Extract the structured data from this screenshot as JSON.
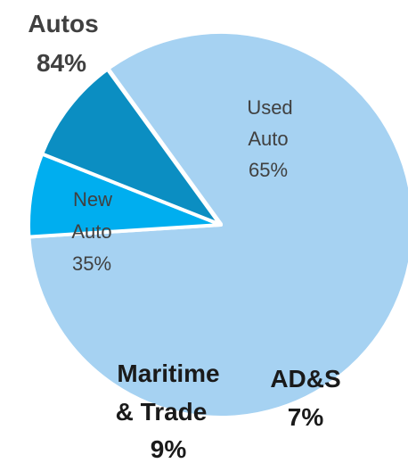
{
  "chart_data": {
    "type": "pie",
    "slices": [
      {
        "name": "Autos",
        "value": 84,
        "color": "#a6d2f2"
      },
      {
        "name": "AD&S",
        "value": 7,
        "color": "#00aeef"
      },
      {
        "name": "Maritime & Trade",
        "value": 9,
        "color": "#0b8ec2"
      }
    ],
    "sub_slices": [
      {
        "parent": "Autos",
        "name": "Used Auto",
        "value": 65
      },
      {
        "parent": "Autos",
        "name": "New Auto",
        "value": 35
      }
    ],
    "labels": {
      "autos": [
        "Autos",
        "84%"
      ],
      "used": [
        "Used",
        "Auto",
        "65%"
      ],
      "new": [
        "New",
        "Auto",
        "35%"
      ],
      "maritime": [
        "Maritime",
        "& Trade",
        "9%"
      ],
      "ads": [
        "AD&S",
        "7%"
      ]
    }
  }
}
